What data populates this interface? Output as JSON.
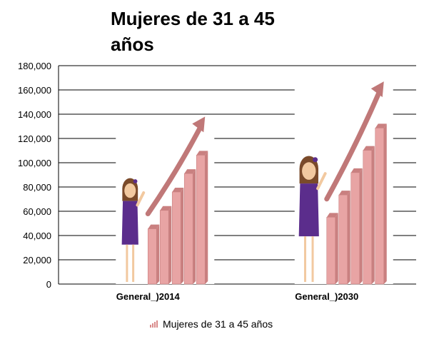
{
  "chart_data": {
    "type": "bar",
    "title": "Mujeres de 31 a 45 años",
    "categories": [
      "General_)2014",
      "General_)2030"
    ],
    "series": [
      {
        "name": "Mujeres de 31 a 45 años",
        "values": [
          138000,
          167000
        ]
      }
    ],
    "ylim": [
      0,
      180000
    ],
    "yticks": [
      "0",
      "20,000",
      "40,000",
      "60,000",
      "80,000",
      "100,000",
      "120,000",
      "140,000",
      "160,000",
      "180,000"
    ],
    "grid": true,
    "legend_position": "bottom",
    "bar_style": "pictograph"
  },
  "colors": {
    "bar": "#e8a4a4",
    "bar_dark": "#c98080",
    "arrow": "#c07878",
    "gridline": "#000000",
    "girl_dress": "#5b2d8c",
    "girl_hair": "#7a4a2a",
    "girl_skin": "#f2c9a0"
  }
}
